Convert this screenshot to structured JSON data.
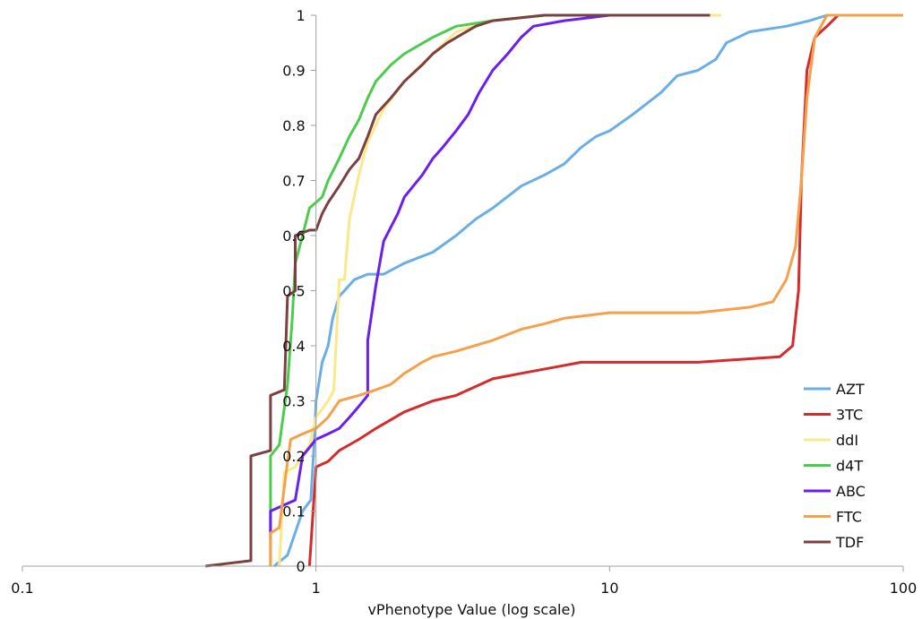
{
  "chart_data": {
    "type": "line",
    "title": "",
    "xlabel": "vPhenotype Value (log scale)",
    "ylabel": "",
    "x_scale": "log",
    "xlim": [
      0.1,
      100
    ],
    "ylim": [
      0,
      1
    ],
    "x_ticks": [
      0.1,
      1,
      10,
      100
    ],
    "x_tick_labels": [
      "0.1",
      "1",
      "10",
      "100"
    ],
    "y_ticks": [
      0,
      0.1,
      0.2,
      0.3,
      0.4,
      0.5,
      0.6,
      0.7,
      0.8,
      0.9,
      1
    ],
    "y_tick_labels": [
      "0",
      "0.1",
      "0.2",
      "0.3",
      "0.4",
      "0.5",
      "0.6",
      "0.7",
      "0.8",
      "0.9",
      "1"
    ],
    "grid": false,
    "legend_position": "bottom-right",
    "series": [
      {
        "name": "AZT",
        "color": "#6aaee8",
        "points": [
          [
            0.72,
            0
          ],
          [
            0.8,
            0.02
          ],
          [
            0.9,
            0.1
          ],
          [
            0.96,
            0.12
          ],
          [
            0.99,
            0.24
          ],
          [
            1.0,
            0.3
          ],
          [
            1.05,
            0.37
          ],
          [
            1.1,
            0.4
          ],
          [
            1.14,
            0.45
          ],
          [
            1.2,
            0.49
          ],
          [
            1.25,
            0.5
          ],
          [
            1.35,
            0.52
          ],
          [
            1.5,
            0.53
          ],
          [
            1.7,
            0.53
          ],
          [
            2.0,
            0.55
          ],
          [
            2.5,
            0.57
          ],
          [
            3.0,
            0.6
          ],
          [
            3.5,
            0.63
          ],
          [
            4.0,
            0.65
          ],
          [
            5.0,
            0.69
          ],
          [
            6.0,
            0.71
          ],
          [
            7.0,
            0.73
          ],
          [
            8.0,
            0.76
          ],
          [
            9.0,
            0.78
          ],
          [
            10.0,
            0.79
          ],
          [
            12.0,
            0.82
          ],
          [
            15.0,
            0.86
          ],
          [
            17.0,
            0.89
          ],
          [
            20.0,
            0.9
          ],
          [
            23.0,
            0.92
          ],
          [
            25.0,
            0.95
          ],
          [
            30.0,
            0.97
          ],
          [
            40.0,
            0.98
          ],
          [
            48.0,
            0.99
          ],
          [
            55.0,
            1.0
          ],
          [
            100.0,
            1.0
          ]
        ]
      },
      {
        "name": "3TC",
        "color": "#d62b2b",
        "points": [
          [
            0.95,
            0
          ],
          [
            1.0,
            0.18
          ],
          [
            1.1,
            0.19
          ],
          [
            1.2,
            0.21
          ],
          [
            1.4,
            0.23
          ],
          [
            1.6,
            0.25
          ],
          [
            2.0,
            0.28
          ],
          [
            2.5,
            0.3
          ],
          [
            3.0,
            0.31
          ],
          [
            4.0,
            0.34
          ],
          [
            5.0,
            0.35
          ],
          [
            8.0,
            0.37
          ],
          [
            20.0,
            0.37
          ],
          [
            38.0,
            0.38
          ],
          [
            42.0,
            0.4
          ],
          [
            44.0,
            0.5
          ],
          [
            45.0,
            0.7
          ],
          [
            47.0,
            0.9
          ],
          [
            50.0,
            0.96
          ],
          [
            55.0,
            0.98
          ],
          [
            60.0,
            1.0
          ],
          [
            100.0,
            1.0
          ]
        ]
      },
      {
        "name": "ddI",
        "color": "#fbe88a",
        "points": [
          [
            0.75,
            0
          ],
          [
            0.78,
            0.17
          ],
          [
            0.85,
            0.18
          ],
          [
            0.95,
            0.22
          ],
          [
            1.0,
            0.27
          ],
          [
            1.1,
            0.3
          ],
          [
            1.15,
            0.32
          ],
          [
            1.2,
            0.52
          ],
          [
            1.25,
            0.52
          ],
          [
            1.3,
            0.63
          ],
          [
            1.4,
            0.71
          ],
          [
            1.5,
            0.77
          ],
          [
            1.7,
            0.83
          ],
          [
            2.0,
            0.88
          ],
          [
            2.5,
            0.93
          ],
          [
            3.0,
            0.97
          ],
          [
            4.0,
            0.99
          ],
          [
            6.0,
            1.0
          ],
          [
            24.0,
            1.0
          ]
        ]
      },
      {
        "name": "d4T",
        "color": "#4ccc4c",
        "points": [
          [
            0.7,
            0
          ],
          [
            0.7,
            0.2
          ],
          [
            0.75,
            0.22
          ],
          [
            0.8,
            0.33
          ],
          [
            0.83,
            0.45
          ],
          [
            0.85,
            0.55
          ],
          [
            0.9,
            0.6
          ],
          [
            0.95,
            0.65
          ],
          [
            1.05,
            0.67
          ],
          [
            1.1,
            0.7
          ],
          [
            1.2,
            0.74
          ],
          [
            1.3,
            0.78
          ],
          [
            1.4,
            0.81
          ],
          [
            1.5,
            0.85
          ],
          [
            1.6,
            0.88
          ],
          [
            1.8,
            0.91
          ],
          [
            2.0,
            0.93
          ],
          [
            2.5,
            0.96
          ],
          [
            3.0,
            0.98
          ],
          [
            4.0,
            0.99
          ],
          [
            6.0,
            1.0
          ],
          [
            22.0,
            1.0
          ]
        ]
      },
      {
        "name": "ABC",
        "color": "#6a1ff0",
        "points": [
          [
            0.7,
            0.05
          ],
          [
            0.7,
            0.1
          ],
          [
            0.85,
            0.12
          ],
          [
            0.9,
            0.2
          ],
          [
            1.0,
            0.23
          ],
          [
            1.1,
            0.24
          ],
          [
            1.2,
            0.25
          ],
          [
            1.3,
            0.27
          ],
          [
            1.4,
            0.29
          ],
          [
            1.5,
            0.31
          ],
          [
            1.5,
            0.41
          ],
          [
            1.6,
            0.51
          ],
          [
            1.7,
            0.59
          ],
          [
            1.9,
            0.64
          ],
          [
            2.0,
            0.67
          ],
          [
            2.3,
            0.71
          ],
          [
            2.5,
            0.74
          ],
          [
            2.7,
            0.76
          ],
          [
            3.0,
            0.79
          ],
          [
            3.3,
            0.82
          ],
          [
            3.6,
            0.86
          ],
          [
            4.0,
            0.9
          ],
          [
            4.5,
            0.93
          ],
          [
            5.0,
            0.96
          ],
          [
            5.5,
            0.98
          ],
          [
            7.0,
            0.99
          ],
          [
            10.0,
            1.0
          ],
          [
            22.0,
            1.0
          ]
        ]
      },
      {
        "name": "FTC",
        "color": "#f5a04a",
        "points": [
          [
            0.7,
            0
          ],
          [
            0.7,
            0.06
          ],
          [
            0.75,
            0.07
          ],
          [
            0.8,
            0.19
          ],
          [
            0.82,
            0.23
          ],
          [
            0.9,
            0.24
          ],
          [
            1.0,
            0.25
          ],
          [
            1.1,
            0.27
          ],
          [
            1.2,
            0.3
          ],
          [
            1.4,
            0.31
          ],
          [
            1.6,
            0.32
          ],
          [
            1.8,
            0.33
          ],
          [
            2.0,
            0.35
          ],
          [
            2.3,
            0.37
          ],
          [
            2.5,
            0.38
          ],
          [
            3.0,
            0.39
          ],
          [
            4.0,
            0.41
          ],
          [
            5.0,
            0.43
          ],
          [
            6.0,
            0.44
          ],
          [
            7.0,
            0.45
          ],
          [
            10.0,
            0.46
          ],
          [
            20.0,
            0.46
          ],
          [
            30.0,
            0.47
          ],
          [
            36.0,
            0.48
          ],
          [
            40.0,
            0.52
          ],
          [
            43.0,
            0.58
          ],
          [
            45.0,
            0.7
          ],
          [
            47.0,
            0.85
          ],
          [
            50.0,
            0.96
          ],
          [
            55.0,
            1.0
          ],
          [
            100.0,
            1.0
          ]
        ]
      },
      {
        "name": "TDF",
        "color": "#7d4040",
        "points": [
          [
            0.42,
            0
          ],
          [
            0.6,
            0.01
          ],
          [
            0.6,
            0.2
          ],
          [
            0.7,
            0.21
          ],
          [
            0.7,
            0.31
          ],
          [
            0.78,
            0.32
          ],
          [
            0.8,
            0.49
          ],
          [
            0.85,
            0.5
          ],
          [
            0.85,
            0.6
          ],
          [
            0.95,
            0.61
          ],
          [
            1.0,
            0.61
          ],
          [
            1.05,
            0.64
          ],
          [
            1.1,
            0.66
          ],
          [
            1.2,
            0.69
          ],
          [
            1.3,
            0.72
          ],
          [
            1.4,
            0.74
          ],
          [
            1.5,
            0.78
          ],
          [
            1.6,
            0.82
          ],
          [
            1.8,
            0.85
          ],
          [
            2.0,
            0.88
          ],
          [
            2.3,
            0.91
          ],
          [
            2.5,
            0.93
          ],
          [
            2.8,
            0.95
          ],
          [
            3.5,
            0.98
          ],
          [
            4.0,
            0.99
          ],
          [
            6.0,
            1.0
          ],
          [
            22.0,
            1.0
          ]
        ]
      }
    ]
  }
}
